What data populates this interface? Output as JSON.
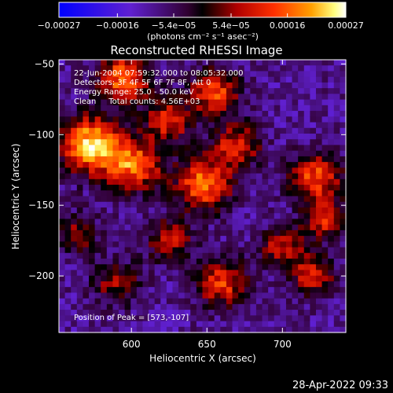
{
  "chart_data": {
    "type": "heatmap",
    "title": "Reconstructed RHESSI Image",
    "xlabel": "Heliocentric X (arcsec)",
    "ylabel": "Heliocentric Y (arcsec)",
    "xlim": [
      552,
      742
    ],
    "ylim": [
      -240,
      -47
    ],
    "x_ticks": [
      {
        "value": 600,
        "label": "600"
      },
      {
        "value": 650,
        "label": "650"
      },
      {
        "value": 700,
        "label": "700"
      }
    ],
    "y_ticks": [
      {
        "value": -50,
        "label": "−50"
      },
      {
        "value": -100,
        "label": "−100"
      },
      {
        "value": -150,
        "label": "−150"
      },
      {
        "value": -200,
        "label": "−200"
      }
    ],
    "colorbar": {
      "range": [
        -0.00027,
        0.00027
      ],
      "ticks": [
        {
          "value": -0.00027,
          "label": "−0.00027"
        },
        {
          "value": -0.00016,
          "label": "−0.00016"
        },
        {
          "value": -5.4e-05,
          "label": "−5.4e−05"
        },
        {
          "value": 5.4e-05,
          "label": "5.4e−05"
        },
        {
          "value": 0.00016,
          "label": "0.00016"
        },
        {
          "value": 0.00027,
          "label": "0.00027"
        }
      ],
      "unit_label": "(photons cm⁻² s⁻¹ asec⁻²)"
    },
    "annotations": [
      "22-Jun-2004 07:59:32.000 to 08:05:32.000",
      "Detectors: 3F 4F 5F 6F 7F 8F, Att 0",
      "Energy Range: 25.0 - 50.0 keV",
      "Clean     Total counts: 4.56E+03"
    ],
    "peak_annotation": "Position of Peak = [573,-107]",
    "hotspots": [
      {
        "x": 573,
        "y": -107,
        "intensity": 1.0,
        "spread": 14
      },
      {
        "x": 595,
        "y": -60,
        "intensity": 0.8,
        "spread": 12
      },
      {
        "x": 602,
        "y": -122,
        "intensity": 0.75,
        "spread": 13
      },
      {
        "x": 625,
        "y": -90,
        "intensity": 0.6,
        "spread": 11
      },
      {
        "x": 648,
        "y": -135,
        "intensity": 0.8,
        "spread": 13
      },
      {
        "x": 655,
        "y": -70,
        "intensity": 0.7,
        "spread": 11
      },
      {
        "x": 670,
        "y": -108,
        "intensity": 0.6,
        "spread": 11
      },
      {
        "x": 722,
        "y": -130,
        "intensity": 0.7,
        "spread": 12
      },
      {
        "x": 728,
        "y": -160,
        "intensity": 0.6,
        "spread": 10
      },
      {
        "x": 700,
        "y": -180,
        "intensity": 0.55,
        "spread": 10
      },
      {
        "x": 720,
        "y": -200,
        "intensity": 0.6,
        "spread": 10
      },
      {
        "x": 625,
        "y": -175,
        "intensity": 0.5,
        "spread": 11
      },
      {
        "x": 660,
        "y": -205,
        "intensity": 0.65,
        "spread": 12
      },
      {
        "x": 590,
        "y": -205,
        "intensity": 0.45,
        "spread": 11
      },
      {
        "x": 565,
        "y": -170,
        "intensity": 0.4,
        "spread": 10
      }
    ],
    "grid": false,
    "colormap": "blue-purple-black-red-orange-yellow-white"
  },
  "footer": {
    "date": "28-Apr-2022 09:33"
  }
}
